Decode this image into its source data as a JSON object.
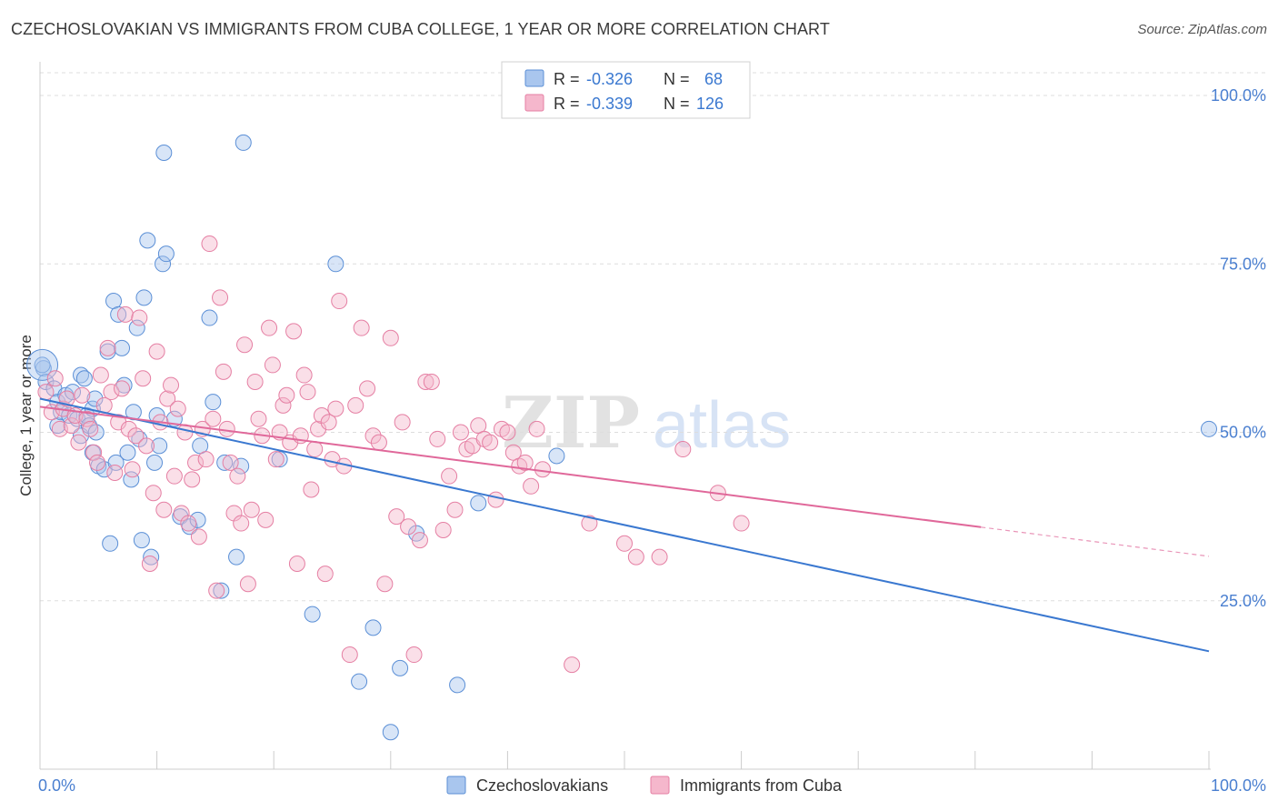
{
  "title": "CZECHOSLOVAKIAN VS IMMIGRANTS FROM CUBA COLLEGE, 1 YEAR OR MORE CORRELATION CHART",
  "source": "Source: ZipAtlas.com",
  "watermark": {
    "part1": "ZIP",
    "part2": "atlas"
  },
  "legend_top": {
    "rows": [
      {
        "r_label": "R =",
        "r_value": "-0.326",
        "n_label": "N =",
        "n_value": "68"
      },
      {
        "r_label": "R =",
        "r_value": "-0.339",
        "n_label": "N =",
        "n_value": "126"
      }
    ]
  },
  "legend_bottom": {
    "items": [
      {
        "label": "Czechoslovakians"
      },
      {
        "label": "Immigrants from Cuba"
      }
    ]
  },
  "colors": {
    "blue_fill": "#a9c6ee",
    "blue_stroke": "#5b8fd6",
    "blue_line": "#3a78d0",
    "pink_fill": "#f5b7cc",
    "pink_stroke": "#e57fa3",
    "pink_line": "#e0689a",
    "grid": "#dddddd",
    "tick_text": "#4a7fd0"
  },
  "chart_data": {
    "type": "scatter",
    "title": "CZECHOSLOVAKIAN VS IMMIGRANTS FROM CUBA COLLEGE, 1 YEAR OR MORE CORRELATION CHART",
    "xlabel": "",
    "ylabel": "College, 1 year or more",
    "xlim": [
      0,
      100
    ],
    "ylim": [
      0,
      105
    ],
    "x_tick_labels": [
      "0.0%",
      "100.0%"
    ],
    "y_tick_labels": [
      "25.0%",
      "50.0%",
      "75.0%",
      "100.0%"
    ],
    "y_ticks": [
      25,
      50,
      75,
      100
    ],
    "grid": true,
    "legend_position": "top-center",
    "series": [
      {
        "name": "Czechoslovakians",
        "color": "#5b8fd6",
        "trend": {
          "x": [
            0,
            100
          ],
          "y": [
            55.0,
            17.5
          ],
          "dashed_from": null
        },
        "points": [
          [
            0.3,
            59.5
          ],
          [
            0.5,
            57.5
          ],
          [
            1.2,
            56.5
          ],
          [
            1.5,
            54.5
          ],
          [
            1.5,
            51.0
          ],
          [
            1.8,
            53.0
          ],
          [
            2.2,
            55.5
          ],
          [
            2.5,
            52.5
          ],
          [
            2.8,
            56.0
          ],
          [
            3.2,
            52.0
          ],
          [
            3.5,
            58.5
          ],
          [
            3.8,
            58.0
          ],
          [
            3.5,
            49.5
          ],
          [
            4.0,
            52.5
          ],
          [
            4.2,
            51.0
          ],
          [
            4.5,
            53.5
          ],
          [
            4.5,
            47.0
          ],
          [
            4.7,
            55.0
          ],
          [
            4.8,
            50.0
          ],
          [
            5.0,
            45.0
          ],
          [
            5.5,
            44.5
          ],
          [
            5.8,
            62.0
          ],
          [
            6.0,
            33.5
          ],
          [
            6.3,
            69.5
          ],
          [
            6.5,
            45.5
          ],
          [
            6.7,
            67.5
          ],
          [
            7.0,
            62.5
          ],
          [
            7.2,
            57.0
          ],
          [
            7.5,
            47.0
          ],
          [
            7.8,
            43.0
          ],
          [
            8.0,
            53.0
          ],
          [
            8.3,
            65.5
          ],
          [
            8.5,
            49.0
          ],
          [
            8.7,
            34.0
          ],
          [
            8.9,
            70.0
          ],
          [
            9.2,
            78.5
          ],
          [
            9.5,
            31.5
          ],
          [
            9.8,
            45.5
          ],
          [
            10.0,
            52.5
          ],
          [
            10.2,
            48.0
          ],
          [
            10.5,
            75.0
          ],
          [
            10.8,
            76.5
          ],
          [
            10.6,
            91.5
          ],
          [
            11.5,
            52.0
          ],
          [
            12.0,
            37.5
          ],
          [
            12.8,
            36.0
          ],
          [
            13.5,
            37.0
          ],
          [
            13.7,
            48.0
          ],
          [
            14.5,
            67.0
          ],
          [
            14.8,
            54.5
          ],
          [
            15.5,
            26.5
          ],
          [
            15.8,
            45.5
          ],
          [
            16.8,
            31.5
          ],
          [
            17.2,
            45.0
          ],
          [
            17.4,
            93.0
          ],
          [
            20.5,
            46.0
          ],
          [
            23.3,
            23.0
          ],
          [
            25.3,
            75.0
          ],
          [
            27.3,
            13.0
          ],
          [
            28.5,
            21.0
          ],
          [
            30.0,
            5.5
          ],
          [
            30.8,
            15.0
          ],
          [
            32.2,
            35.0
          ],
          [
            35.7,
            12.5
          ],
          [
            37.5,
            39.5
          ],
          [
            44.2,
            46.5
          ],
          [
            100,
            50.5
          ],
          [
            0.2,
            60.0
          ]
        ]
      },
      {
        "name": "Immigrants from Cuba",
        "color": "#e57fa3",
        "trend": {
          "x": [
            0,
            100
          ],
          "y": [
            53.8,
            31.6
          ],
          "dashed_from": 80.5
        },
        "points": [
          [
            0.5,
            56.0
          ],
          [
            1.0,
            53.0
          ],
          [
            1.3,
            58.0
          ],
          [
            1.7,
            50.5
          ],
          [
            2.0,
            53.5
          ],
          [
            2.3,
            55.0
          ],
          [
            2.7,
            51.0
          ],
          [
            3.0,
            52.5
          ],
          [
            3.3,
            48.5
          ],
          [
            3.6,
            55.5
          ],
          [
            4.0,
            52.0
          ],
          [
            4.3,
            50.5
          ],
          [
            4.6,
            47.0
          ],
          [
            4.9,
            45.5
          ],
          [
            5.2,
            58.5
          ],
          [
            5.5,
            54.0
          ],
          [
            5.8,
            62.5
          ],
          [
            6.1,
            56.0
          ],
          [
            6.4,
            44.0
          ],
          [
            6.7,
            51.5
          ],
          [
            7.0,
            56.5
          ],
          [
            7.3,
            67.5
          ],
          [
            7.6,
            50.5
          ],
          [
            7.9,
            44.5
          ],
          [
            8.2,
            49.5
          ],
          [
            8.5,
            67.0
          ],
          [
            8.8,
            58.0
          ],
          [
            9.1,
            48.0
          ],
          [
            9.4,
            30.5
          ],
          [
            9.7,
            41.0
          ],
          [
            10.0,
            62.0
          ],
          [
            10.3,
            51.5
          ],
          [
            10.6,
            38.5
          ],
          [
            10.9,
            55.0
          ],
          [
            11.2,
            57.0
          ],
          [
            11.5,
            43.5
          ],
          [
            11.8,
            53.5
          ],
          [
            12.1,
            38.0
          ],
          [
            12.4,
            50.0
          ],
          [
            12.7,
            36.5
          ],
          [
            13.0,
            43.0
          ],
          [
            13.3,
            45.5
          ],
          [
            13.6,
            34.5
          ],
          [
            13.9,
            50.5
          ],
          [
            14.2,
            46.0
          ],
          [
            14.5,
            78.0
          ],
          [
            14.8,
            52.0
          ],
          [
            15.1,
            26.5
          ],
          [
            15.4,
            70.0
          ],
          [
            15.7,
            59.0
          ],
          [
            16.0,
            50.5
          ],
          [
            16.3,
            45.5
          ],
          [
            16.6,
            38.0
          ],
          [
            16.9,
            43.5
          ],
          [
            17.2,
            36.5
          ],
          [
            17.5,
            63.0
          ],
          [
            17.8,
            27.5
          ],
          [
            18.1,
            38.5
          ],
          [
            18.4,
            57.5
          ],
          [
            18.7,
            52.0
          ],
          [
            19.0,
            49.5
          ],
          [
            19.3,
            37.0
          ],
          [
            19.6,
            65.5
          ],
          [
            19.9,
            60.0
          ],
          [
            20.2,
            46.0
          ],
          [
            20.5,
            50.0
          ],
          [
            20.8,
            54.0
          ],
          [
            21.1,
            55.5
          ],
          [
            21.4,
            48.5
          ],
          [
            21.7,
            65.0
          ],
          [
            22.0,
            30.5
          ],
          [
            22.3,
            49.5
          ],
          [
            22.6,
            58.5
          ],
          [
            22.9,
            56.0
          ],
          [
            23.2,
            41.5
          ],
          [
            23.5,
            47.5
          ],
          [
            23.8,
            50.5
          ],
          [
            24.1,
            52.5
          ],
          [
            24.4,
            29.0
          ],
          [
            24.7,
            51.5
          ],
          [
            25.0,
            46.0
          ],
          [
            25.3,
            53.5
          ],
          [
            25.6,
            69.5
          ],
          [
            26.0,
            45.0
          ],
          [
            26.5,
            17.0
          ],
          [
            27.0,
            54.0
          ],
          [
            27.5,
            65.5
          ],
          [
            28.0,
            56.5
          ],
          [
            28.5,
            49.5
          ],
          [
            29.0,
            48.5
          ],
          [
            29.5,
            27.5
          ],
          [
            30.0,
            64.0
          ],
          [
            30.5,
            37.5
          ],
          [
            31.0,
            51.5
          ],
          [
            31.5,
            36.0
          ],
          [
            32.0,
            17.0
          ],
          [
            32.5,
            34.0
          ],
          [
            33.0,
            57.5
          ],
          [
            33.5,
            57.5
          ],
          [
            34.0,
            49.0
          ],
          [
            34.5,
            35.5
          ],
          [
            35.0,
            43.5
          ],
          [
            35.5,
            38.5
          ],
          [
            36.0,
            50.0
          ],
          [
            36.5,
            47.5
          ],
          [
            37.0,
            48.0
          ],
          [
            37.5,
            51.0
          ],
          [
            38.0,
            49.0
          ],
          [
            38.5,
            48.5
          ],
          [
            39.0,
            40.0
          ],
          [
            39.5,
            50.5
          ],
          [
            40.0,
            50.0
          ],
          [
            40.5,
            47.0
          ],
          [
            41.0,
            45.0
          ],
          [
            41.5,
            45.5
          ],
          [
            42.0,
            42.0
          ],
          [
            42.5,
            50.5
          ],
          [
            43.0,
            44.5
          ],
          [
            45.5,
            15.5
          ],
          [
            47.0,
            36.5
          ],
          [
            50.0,
            33.5
          ],
          [
            51.0,
            31.5
          ],
          [
            53.0,
            31.5
          ],
          [
            55.0,
            47.5
          ],
          [
            58.0,
            41.0
          ],
          [
            60.0,
            36.5
          ]
        ]
      }
    ]
  }
}
